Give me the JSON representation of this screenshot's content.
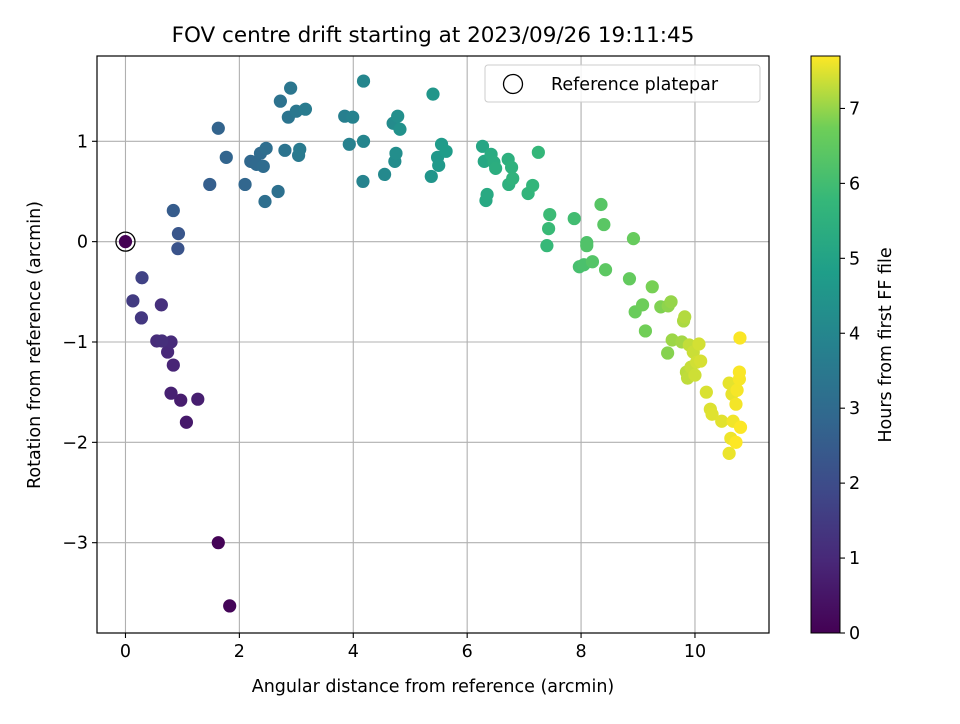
{
  "chart_data": {
    "type": "scatter",
    "title": "FOV centre drift starting at 2023/09/26 19:11:45",
    "xlabel": "Angular distance from reference (arcmin)",
    "ylabel": "Rotation from reference (arcmin)",
    "xlim": [
      -0.5,
      11.3
    ],
    "ylim": [
      -3.9,
      1.85
    ],
    "x_ticks": [
      0,
      2,
      4,
      6,
      8,
      10
    ],
    "y_ticks": [
      -3,
      -2,
      -1,
      0,
      1
    ],
    "grid": true,
    "legend": {
      "placement": "top-right",
      "entries": [
        "Reference platepar"
      ]
    },
    "colorbar": {
      "label": "Hours from first FF file",
      "colormap": "viridis",
      "range": [
        0,
        7.7
      ],
      "ticks": [
        0,
        1,
        2,
        3,
        4,
        5,
        6,
        7
      ]
    },
    "reference": {
      "x": 0.0,
      "y": 0.0
    },
    "series": [
      {
        "points": [
          [
            0.0,
            0.0,
            0.0
          ],
          [
            1.63,
            -3.0,
            0.05
          ],
          [
            1.83,
            -3.63,
            0.1
          ],
          [
            1.07,
            -1.8,
            0.6
          ],
          [
            0.97,
            -1.58,
            0.7
          ],
          [
            1.27,
            -1.57,
            0.75
          ],
          [
            0.8,
            -1.51,
            0.8
          ],
          [
            0.84,
            -1.23,
            0.9
          ],
          [
            0.74,
            -1.1,
            1.0
          ],
          [
            0.8,
            -1.0,
            1.05
          ],
          [
            0.55,
            -0.99,
            1.1
          ],
          [
            0.64,
            -0.99,
            1.15
          ],
          [
            0.63,
            -0.63,
            1.2
          ],
          [
            0.28,
            -0.76,
            1.4
          ],
          [
            0.13,
            -0.59,
            1.5
          ],
          [
            0.29,
            -0.36,
            1.7
          ],
          [
            0.92,
            -0.07,
            2.2
          ],
          [
            0.93,
            0.08,
            2.3
          ],
          [
            0.84,
            0.31,
            2.5
          ],
          [
            1.48,
            0.57,
            2.6
          ],
          [
            1.63,
            1.13,
            2.75
          ],
          [
            1.77,
            0.84,
            2.8
          ],
          [
            2.1,
            0.57,
            2.85
          ],
          [
            2.2,
            0.8,
            2.9
          ],
          [
            2.3,
            0.77,
            2.95
          ],
          [
            2.37,
            0.88,
            3.0
          ],
          [
            2.42,
            0.75,
            3.05
          ],
          [
            2.47,
            0.93,
            3.1
          ],
          [
            2.45,
            0.4,
            3.15
          ],
          [
            2.68,
            0.5,
            3.2
          ],
          [
            2.72,
            1.4,
            3.25
          ],
          [
            2.8,
            0.91,
            3.3
          ],
          [
            2.86,
            1.24,
            3.35
          ],
          [
            2.9,
            1.53,
            3.4
          ],
          [
            3.0,
            1.3,
            3.45
          ],
          [
            3.04,
            0.86,
            3.5
          ],
          [
            3.06,
            0.92,
            3.55
          ],
          [
            3.16,
            1.32,
            3.6
          ],
          [
            3.85,
            1.25,
            3.75
          ],
          [
            3.93,
            0.97,
            3.8
          ],
          [
            3.99,
            1.24,
            3.85
          ],
          [
            4.17,
            0.6,
            3.9
          ],
          [
            4.18,
            1.0,
            3.95
          ],
          [
            4.18,
            1.6,
            4.0
          ],
          [
            4.55,
            0.67,
            4.1
          ],
          [
            4.7,
            1.18,
            4.15
          ],
          [
            4.73,
            0.8,
            4.2
          ],
          [
            4.75,
            0.88,
            4.25
          ],
          [
            4.78,
            1.25,
            4.3
          ],
          [
            4.82,
            1.12,
            4.35
          ],
          [
            5.37,
            0.65,
            4.5
          ],
          [
            5.4,
            1.47,
            4.55
          ],
          [
            5.48,
            0.84,
            4.6
          ],
          [
            5.5,
            0.76,
            4.65
          ],
          [
            5.55,
            0.97,
            4.7
          ],
          [
            5.63,
            0.9,
            4.75
          ],
          [
            6.27,
            0.95,
            5.1
          ],
          [
            6.3,
            0.8,
            5.15
          ],
          [
            6.33,
            0.41,
            5.2
          ],
          [
            6.35,
            0.47,
            5.25
          ],
          [
            6.42,
            0.87,
            5.3
          ],
          [
            6.47,
            0.79,
            5.35
          ],
          [
            6.5,
            0.73,
            5.4
          ],
          [
            6.72,
            0.82,
            5.45
          ],
          [
            6.73,
            0.57,
            5.5
          ],
          [
            6.78,
            0.74,
            5.55
          ],
          [
            6.8,
            0.63,
            5.6
          ],
          [
            7.07,
            0.48,
            5.65
          ],
          [
            7.15,
            0.56,
            5.7
          ],
          [
            7.25,
            0.89,
            5.75
          ],
          [
            7.4,
            -0.04,
            5.8
          ],
          [
            7.43,
            0.13,
            5.85
          ],
          [
            7.45,
            0.27,
            5.9
          ],
          [
            7.88,
            0.23,
            6.0
          ],
          [
            7.97,
            -0.25,
            6.1
          ],
          [
            8.05,
            -0.23,
            6.15
          ],
          [
            8.1,
            -0.01,
            6.2
          ],
          [
            8.1,
            -0.04,
            6.25
          ],
          [
            8.2,
            -0.2,
            6.3
          ],
          [
            8.35,
            0.37,
            6.35
          ],
          [
            8.4,
            0.17,
            6.4
          ],
          [
            8.43,
            -0.28,
            6.45
          ],
          [
            8.85,
            -0.37,
            6.55
          ],
          [
            8.92,
            0.03,
            6.6
          ],
          [
            8.95,
            -0.7,
            6.65
          ],
          [
            9.08,
            -0.63,
            6.7
          ],
          [
            9.13,
            -0.89,
            6.75
          ],
          [
            9.25,
            -0.45,
            6.8
          ],
          [
            9.4,
            -0.65,
            6.85
          ],
          [
            9.52,
            -1.11,
            6.9
          ],
          [
            9.53,
            -0.64,
            6.95
          ],
          [
            9.58,
            -0.6,
            7.0
          ],
          [
            9.6,
            -0.98,
            7.05
          ],
          [
            9.77,
            -1.0,
            7.1
          ],
          [
            9.8,
            -0.79,
            7.15
          ],
          [
            9.82,
            -0.75,
            7.2
          ],
          [
            9.85,
            -1.3,
            7.25
          ],
          [
            9.87,
            -1.36,
            7.28
          ],
          [
            9.9,
            -1.03,
            7.3
          ],
          [
            9.93,
            -1.25,
            7.33
          ],
          [
            9.97,
            -1.1,
            7.36
          ],
          [
            10.0,
            -1.33,
            7.38
          ],
          [
            10.03,
            -1.2,
            7.4
          ],
          [
            10.07,
            -1.02,
            7.42
          ],
          [
            10.1,
            -1.19,
            7.44
          ],
          [
            10.2,
            -1.5,
            7.46
          ],
          [
            10.27,
            -1.67,
            7.48
          ],
          [
            10.3,
            -1.72,
            7.5
          ],
          [
            10.47,
            -1.79,
            7.52
          ],
          [
            10.6,
            -1.41,
            7.54
          ],
          [
            10.65,
            -1.52,
            7.56
          ],
          [
            10.6,
            -2.11,
            7.58
          ],
          [
            10.63,
            -1.96,
            7.6
          ],
          [
            10.67,
            -1.79,
            7.62
          ],
          [
            10.72,
            -1.62,
            7.64
          ],
          [
            10.74,
            -1.48,
            7.65
          ],
          [
            10.78,
            -1.37,
            7.66
          ],
          [
            10.78,
            -1.3,
            7.67
          ],
          [
            10.79,
            -0.96,
            7.68
          ],
          [
            10.8,
            -1.85,
            7.69
          ],
          [
            10.72,
            -2.0,
            7.7
          ]
        ]
      }
    ]
  }
}
